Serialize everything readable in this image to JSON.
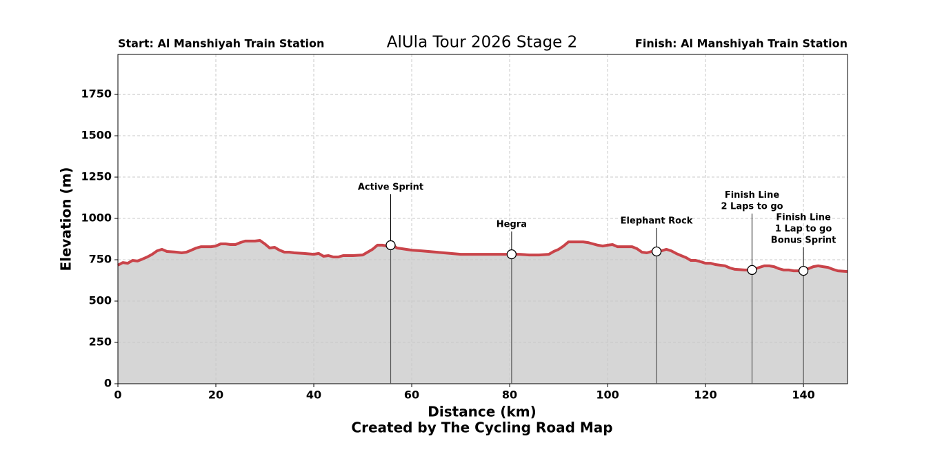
{
  "chart_data": {
    "type": "area",
    "title": "AlUla Tour 2026 Stage 2",
    "start_label": "Start: Al Manshiyah Train Station",
    "finish_label": "Finish: Al Manshiyah Train Station",
    "xlabel": "Distance (km)",
    "ylabel": "Elevation (m)",
    "footer": "Created by The Cycling Road Map",
    "xlim": [
      0,
      149
    ],
    "ylim": [
      0,
      1992
    ],
    "xticks": [
      0,
      20,
      40,
      60,
      80,
      100,
      120,
      140
    ],
    "yticks": [
      0,
      250,
      500,
      750,
      1000,
      1250,
      1500,
      1750
    ],
    "grid": true,
    "color": "#c9444a",
    "fill_color": "#d6d6d6",
    "x": [
      0,
      1,
      2,
      3,
      4,
      5,
      6,
      7,
      8,
      9,
      10,
      12,
      13,
      14,
      15,
      16,
      17,
      18,
      19,
      20,
      21,
      22,
      23,
      24,
      25,
      26,
      27,
      28,
      29,
      30,
      31,
      32,
      33,
      34,
      35,
      36,
      38,
      40,
      41,
      42,
      43,
      44,
      45,
      46,
      48,
      50,
      51,
      52,
      53,
      54,
      55,
      56,
      57,
      58,
      60,
      62,
      65,
      68,
      70,
      73,
      76,
      78,
      80,
      82,
      84,
      86,
      88,
      89,
      90,
      91,
      92,
      93,
      94,
      95,
      96,
      97,
      98,
      99,
      100,
      101,
      102,
      103,
      105,
      106,
      107,
      108,
      109,
      110,
      111,
      112,
      113,
      114,
      115,
      116,
      117,
      118,
      119,
      120,
      121,
      122,
      124,
      125,
      126,
      128,
      129.5,
      131,
      132,
      133,
      134,
      135,
      136,
      137,
      138,
      139,
      140,
      141,
      142,
      143,
      144,
      145,
      146,
      147,
      149
    ],
    "values": [
      717,
      733,
      729,
      746,
      742,
      754,
      767,
      783,
      804,
      813,
      800,
      796,
      792,
      796,
      808,
      821,
      829,
      829,
      829,
      833,
      846,
      846,
      842,
      842,
      854,
      863,
      863,
      863,
      867,
      846,
      821,
      825,
      808,
      796,
      796,
      792,
      788,
      783,
      788,
      771,
      775,
      767,
      767,
      775,
      775,
      779,
      796,
      813,
      838,
      838,
      833,
      842,
      821,
      817,
      808,
      804,
      796,
      788,
      783,
      783,
      783,
      783,
      783,
      783,
      779,
      779,
      783,
      800,
      813,
      833,
      858,
      858,
      858,
      858,
      854,
      846,
      838,
      833,
      838,
      842,
      829,
      829,
      829,
      817,
      796,
      792,
      800,
      800,
      804,
      813,
      804,
      788,
      775,
      763,
      746,
      746,
      738,
      729,
      729,
      721,
      713,
      700,
      692,
      688,
      688,
      704,
      713,
      713,
      708,
      696,
      688,
      688,
      683,
      683,
      683,
      696,
      708,
      713,
      708,
      704,
      692,
      683,
      679
    ],
    "annotations": [
      {
        "label": [
          "Active Sprint"
        ],
        "x": 55.7,
        "y": 838
      },
      {
        "label": [
          "Hegra"
        ],
        "x": 80.4,
        "y": 783
      },
      {
        "label": [
          "Elephant Rock"
        ],
        "x": 110,
        "y": 800
      },
      {
        "label": [
          "Finish Line",
          "2 Laps to go"
        ],
        "x": 129.5,
        "y": 688
      },
      {
        "label": [
          "Finish Line",
          "1 Lap to go",
          "Bonus Sprint"
        ],
        "x": 140,
        "y": 683
      }
    ]
  }
}
